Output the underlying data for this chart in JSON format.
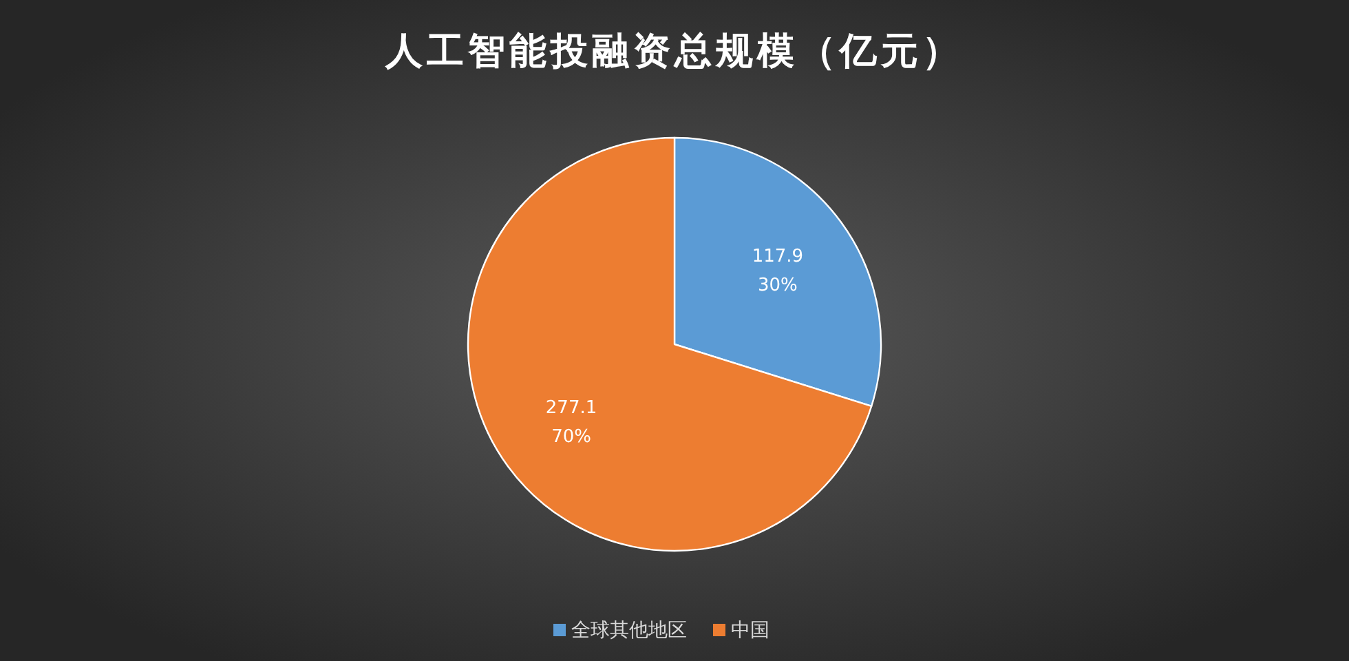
{
  "chart_data": {
    "type": "pie",
    "title": "人工智能投融资总规模（亿元）",
    "categories": [
      "全球其他地区",
      "中国"
    ],
    "values": [
      117.9,
      277.1
    ],
    "colors": [
      "#5b9bd5",
      "#ed7d31"
    ],
    "value_labels": [
      "117.9\n30%",
      "277.1\n70%"
    ],
    "legend": "bottom"
  }
}
